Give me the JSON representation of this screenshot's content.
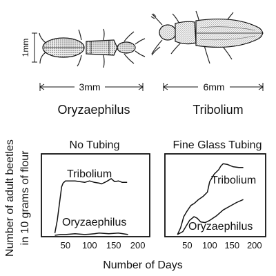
{
  "beetles": {
    "left": {
      "name": "Oryzaephilus",
      "length_label": "3mm",
      "scale_label": "1mm"
    },
    "right": {
      "name": "Tribolium",
      "length_label": "6mm"
    }
  },
  "chart_data": [
    {
      "type": "line",
      "title": "No Tubing",
      "xlabel": "Number of Days",
      "ylabel": [
        "Number of adult beetles",
        "in 10 grams of flour"
      ],
      "xlim": [
        0,
        225
      ],
      "ylim": [
        0,
        100
      ],
      "yticks": false,
      "xticks": [
        50,
        100,
        150,
        200
      ],
      "series": [
        {
          "name": "Tribolium",
          "x": [
            28,
            33,
            38,
            42,
            45,
            50,
            60,
            70,
            80,
            90,
            100,
            110,
            120,
            125,
            135,
            145,
            152,
            160,
            168,
            178
          ],
          "y": [
            3,
            20,
            45,
            65,
            70,
            73,
            73,
            73,
            72,
            71,
            73,
            71,
            70,
            69,
            72,
            76,
            72,
            73,
            71,
            71
          ]
        },
        {
          "name": "Oryzaephilus",
          "x": [
            28,
            40,
            50,
            70,
            90,
            110,
            120,
            140,
            160,
            180
          ],
          "y": [
            0,
            1,
            1,
            2,
            1,
            2,
            3,
            2,
            3,
            1
          ]
        }
      ]
    },
    {
      "type": "line",
      "title": "Fine Glass Tubing",
      "xlabel": "Number of Days",
      "xlim": [
        0,
        225
      ],
      "ylim": [
        0,
        100
      ],
      "yticks": false,
      "xticks": [
        50,
        100,
        150,
        200
      ],
      "series": [
        {
          "name": "Tribolium",
          "x": [
            28,
            35,
            42,
            50,
            58,
            66,
            75,
            85,
            95,
            100,
            110,
            120,
            125,
            130,
            140,
            152,
            165,
            175
          ],
          "y": [
            1,
            10,
            25,
            33,
            40,
            43,
            48,
            52,
            58,
            72,
            82,
            88,
            93,
            96,
            95,
            92,
            91,
            91
          ]
        },
        {
          "name": "Oryzaephilus",
          "x": [
            28,
            40,
            55,
            65,
            72,
            80,
            90,
            100,
            115,
            130,
            145,
            160,
            175
          ],
          "y": [
            1,
            5,
            20,
            25,
            23,
            18,
            17,
            20,
            26,
            34,
            39,
            44,
            48
          ]
        }
      ]
    }
  ]
}
